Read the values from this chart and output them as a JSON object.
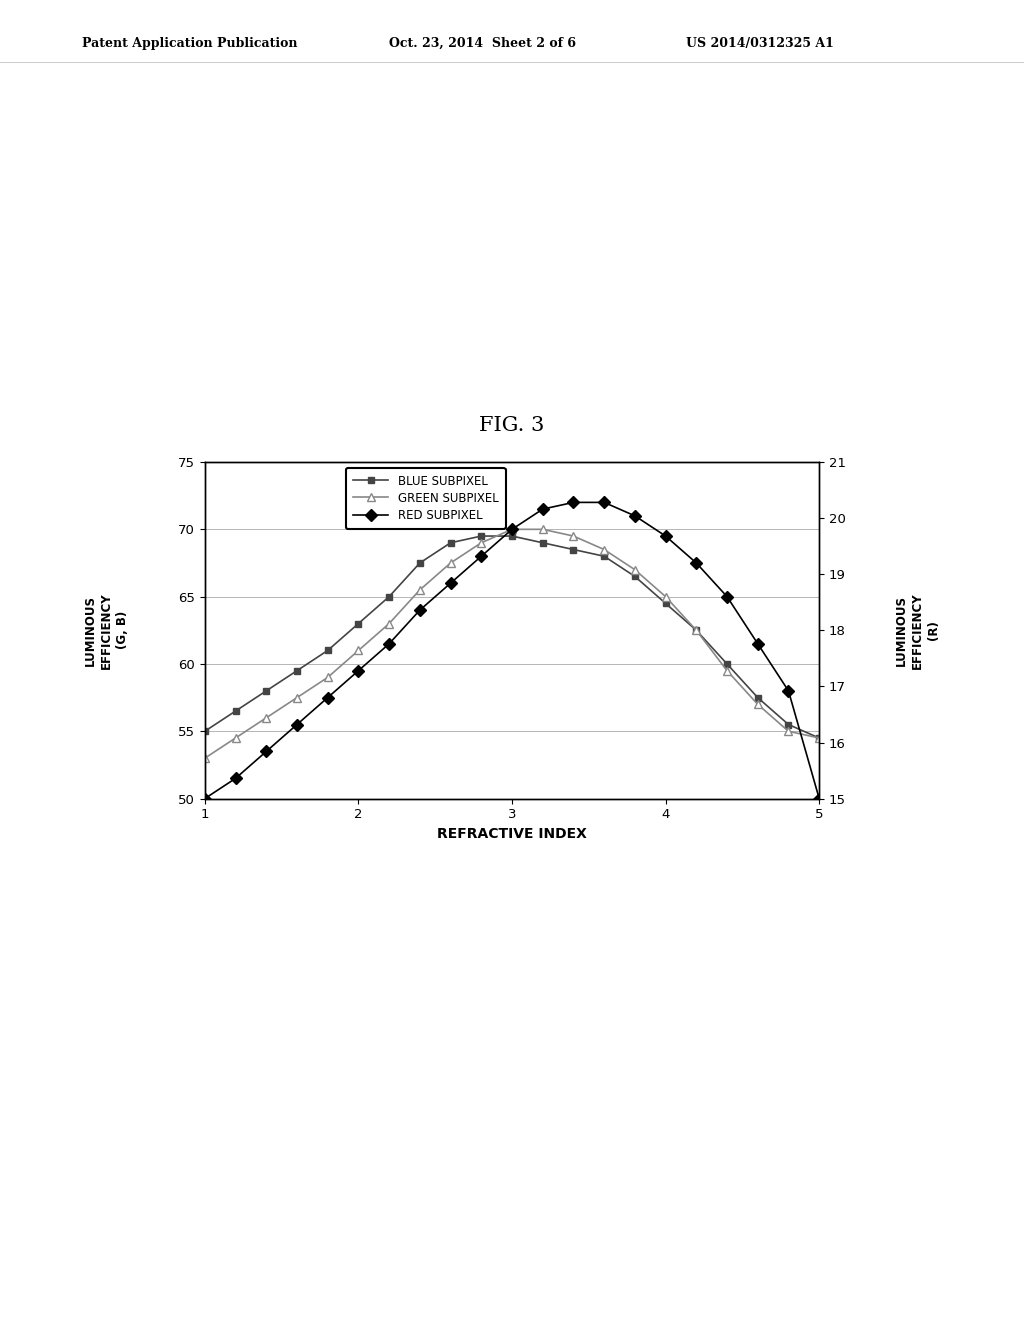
{
  "header_left": "Patent Application Publication",
  "header_mid": "Oct. 23, 2014  Sheet 2 of 6",
  "header_right": "US 2014/0312325 A1",
  "xlabel": "REFRACTIVE INDEX",
  "ylabel_left": "LUMINOUS\nEFFICIENCY\n(G, B)",
  "ylabel_right": "LUMINOUS\nEFFICIENCY\n(R)",
  "xlim": [
    1,
    5
  ],
  "ylim_left": [
    50,
    75
  ],
  "ylim_right": [
    15,
    21
  ],
  "xticks": [
    1,
    2,
    3,
    4,
    5
  ],
  "yticks_left": [
    50,
    55,
    60,
    65,
    70,
    75
  ],
  "yticks_right": [
    15,
    16,
    17,
    18,
    19,
    20,
    21
  ],
  "x": [
    1.0,
    1.2,
    1.4,
    1.6,
    1.8,
    2.0,
    2.2,
    2.4,
    2.6,
    2.8,
    3.0,
    3.2,
    3.4,
    3.6,
    3.8,
    4.0,
    4.2,
    4.4,
    4.6,
    4.8,
    5.0
  ],
  "blue_y": [
    55.0,
    56.5,
    58.0,
    59.5,
    61.0,
    63.0,
    65.0,
    67.5,
    69.0,
    69.5,
    69.5,
    69.0,
    68.5,
    68.0,
    66.5,
    64.5,
    62.5,
    60.0,
    57.5,
    55.5,
    54.5
  ],
  "green_y": [
    53.0,
    54.5,
    56.0,
    57.5,
    59.0,
    61.0,
    63.0,
    65.5,
    67.5,
    69.0,
    70.0,
    70.0,
    69.5,
    68.5,
    67.0,
    65.0,
    62.5,
    59.5,
    57.0,
    55.0,
    54.5
  ],
  "red_y": [
    50.0,
    51.5,
    53.5,
    55.5,
    57.5,
    59.5,
    61.5,
    64.0,
    66.0,
    68.0,
    70.0,
    71.5,
    72.0,
    72.0,
    71.0,
    69.5,
    67.5,
    65.0,
    61.5,
    58.0,
    50.0
  ],
  "blue_color": "#444444",
  "green_color": "#888888",
  "red_color": "#000000",
  "background_color": "#ffffff",
  "legend_entries": [
    "BLUE SUBPIXEL",
    "GREEN SUBPIXEL",
    "RED SUBPIXEL"
  ],
  "fig_label": "FIG. 3"
}
